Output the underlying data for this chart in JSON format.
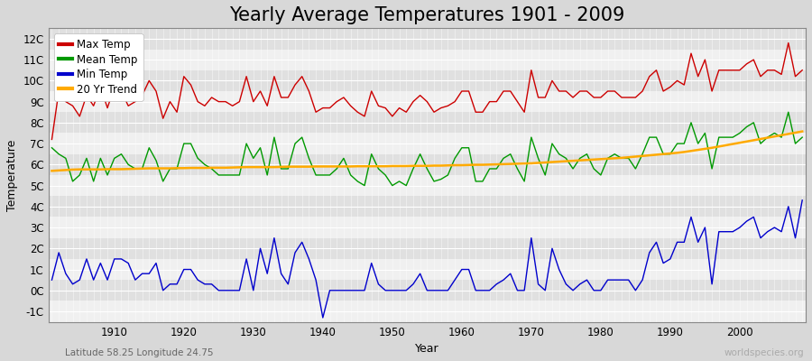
{
  "title": "Yearly Average Temperatures 1901 - 2009",
  "xlabel": "Year",
  "ylabel": "Temperature",
  "subtitle": "Latitude 58.25 Longitude 24.75",
  "watermark": "worldspecies.org",
  "years": [
    1901,
    1902,
    1903,
    1904,
    1905,
    1906,
    1907,
    1908,
    1909,
    1910,
    1911,
    1912,
    1913,
    1914,
    1915,
    1916,
    1917,
    1918,
    1919,
    1920,
    1921,
    1922,
    1923,
    1924,
    1925,
    1926,
    1927,
    1928,
    1929,
    1930,
    1931,
    1932,
    1933,
    1934,
    1935,
    1936,
    1937,
    1938,
    1939,
    1940,
    1941,
    1942,
    1943,
    1944,
    1945,
    1946,
    1947,
    1948,
    1949,
    1950,
    1951,
    1952,
    1953,
    1954,
    1955,
    1956,
    1957,
    1958,
    1959,
    1960,
    1961,
    1962,
    1963,
    1964,
    1965,
    1966,
    1967,
    1968,
    1969,
    1970,
    1971,
    1972,
    1973,
    1974,
    1975,
    1976,
    1977,
    1978,
    1979,
    1980,
    1981,
    1982,
    1983,
    1984,
    1985,
    1986,
    1987,
    1988,
    1989,
    1990,
    1991,
    1992,
    1993,
    1994,
    1995,
    1996,
    1997,
    1998,
    1999,
    2000,
    2001,
    2002,
    2003,
    2004,
    2005,
    2006,
    2007,
    2008,
    2009
  ],
  "max_temp": [
    7.2,
    9.5,
    9.0,
    8.8,
    8.3,
    9.3,
    8.8,
    9.7,
    8.7,
    9.7,
    9.5,
    8.8,
    9.0,
    9.3,
    10.0,
    9.5,
    8.2,
    9.0,
    8.5,
    10.2,
    9.8,
    9.0,
    8.8,
    9.2,
    9.0,
    9.0,
    8.8,
    9.0,
    10.2,
    9.0,
    9.5,
    8.8,
    10.2,
    9.2,
    9.2,
    9.8,
    10.2,
    9.5,
    8.5,
    8.7,
    8.7,
    9.0,
    9.2,
    8.8,
    8.5,
    8.3,
    9.5,
    8.8,
    8.7,
    8.3,
    8.7,
    8.5,
    9.0,
    9.3,
    9.0,
    8.5,
    8.7,
    8.8,
    9.0,
    9.5,
    9.5,
    8.5,
    8.5,
    9.0,
    9.0,
    9.5,
    9.5,
    9.0,
    8.5,
    10.5,
    9.2,
    9.2,
    10.0,
    9.5,
    9.5,
    9.2,
    9.5,
    9.5,
    9.2,
    9.2,
    9.5,
    9.5,
    9.2,
    9.2,
    9.2,
    9.5,
    10.2,
    10.5,
    9.5,
    9.7,
    10.0,
    9.8,
    11.3,
    10.2,
    11.0,
    9.5,
    10.5,
    10.5,
    10.5,
    10.5,
    10.8,
    11.0,
    10.2,
    10.5,
    10.5,
    10.3,
    11.8,
    10.2,
    10.5
  ],
  "mean_temp": [
    6.8,
    6.5,
    6.3,
    5.2,
    5.5,
    6.3,
    5.2,
    6.3,
    5.5,
    6.3,
    6.5,
    6.0,
    5.8,
    5.8,
    6.8,
    6.2,
    5.2,
    5.8,
    5.8,
    7.0,
    7.0,
    6.3,
    6.0,
    5.8,
    5.5,
    5.5,
    5.5,
    5.5,
    7.0,
    6.3,
    6.8,
    5.5,
    7.3,
    5.8,
    5.8,
    7.0,
    7.3,
    6.3,
    5.5,
    5.5,
    5.5,
    5.8,
    6.3,
    5.5,
    5.2,
    5.0,
    6.5,
    5.8,
    5.5,
    5.0,
    5.2,
    5.0,
    5.8,
    6.5,
    5.8,
    5.2,
    5.3,
    5.5,
    6.3,
    6.8,
    6.8,
    5.2,
    5.2,
    5.8,
    5.8,
    6.3,
    6.5,
    5.8,
    5.2,
    7.3,
    6.3,
    5.5,
    7.0,
    6.5,
    6.3,
    5.8,
    6.3,
    6.5,
    5.8,
    5.5,
    6.3,
    6.5,
    6.3,
    6.3,
    5.8,
    6.5,
    7.3,
    7.3,
    6.5,
    6.5,
    7.0,
    7.0,
    8.0,
    7.0,
    7.5,
    5.8,
    7.3,
    7.3,
    7.3,
    7.5,
    7.8,
    8.0,
    7.0,
    7.3,
    7.5,
    7.3,
    8.5,
    7.0,
    7.3
  ],
  "min_temp": [
    0.5,
    1.8,
    0.8,
    0.3,
    0.5,
    1.5,
    0.5,
    1.3,
    0.5,
    1.5,
    1.5,
    1.3,
    0.5,
    0.8,
    0.8,
    1.3,
    0.0,
    0.3,
    0.3,
    1.0,
    1.0,
    0.5,
    0.3,
    0.3,
    0.0,
    0.0,
    0.0,
    0.0,
    1.5,
    0.0,
    2.0,
    0.8,
    2.5,
    0.8,
    0.3,
    1.8,
    2.3,
    1.5,
    0.5,
    -1.3,
    0.0,
    0.0,
    0.0,
    0.0,
    0.0,
    0.0,
    1.3,
    0.3,
    0.0,
    0.0,
    0.0,
    0.0,
    0.3,
    0.8,
    0.0,
    0.0,
    0.0,
    0.0,
    0.5,
    1.0,
    1.0,
    0.0,
    0.0,
    0.0,
    0.3,
    0.5,
    0.8,
    0.0,
    0.0,
    2.5,
    0.3,
    0.0,
    2.0,
    1.0,
    0.3,
    0.0,
    0.3,
    0.5,
    0.0,
    0.0,
    0.5,
    0.5,
    0.5,
    0.5,
    0.0,
    0.5,
    1.8,
    2.3,
    1.3,
    1.5,
    2.3,
    2.3,
    3.5,
    2.3,
    3.0,
    0.3,
    2.8,
    2.8,
    2.8,
    3.0,
    3.3,
    3.5,
    2.5,
    2.8,
    3.0,
    2.8,
    4.0,
    2.5,
    4.3
  ],
  "trend": [
    5.7,
    5.72,
    5.74,
    5.76,
    5.77,
    5.77,
    5.77,
    5.77,
    5.78,
    5.78,
    5.78,
    5.79,
    5.8,
    5.81,
    5.82,
    5.82,
    5.82,
    5.82,
    5.83,
    5.83,
    5.84,
    5.84,
    5.84,
    5.85,
    5.85,
    5.85,
    5.86,
    5.87,
    5.88,
    5.88,
    5.88,
    5.88,
    5.88,
    5.89,
    5.9,
    5.9,
    5.9,
    5.9,
    5.91,
    5.91,
    5.91,
    5.91,
    5.91,
    5.91,
    5.92,
    5.92,
    5.92,
    5.92,
    5.92,
    5.93,
    5.93,
    5.93,
    5.94,
    5.94,
    5.94,
    5.95,
    5.95,
    5.96,
    5.97,
    5.97,
    5.98,
    5.99,
    5.99,
    6.0,
    6.01,
    6.02,
    6.03,
    6.04,
    6.05,
    6.06,
    6.08,
    6.1,
    6.12,
    6.14,
    6.16,
    6.18,
    6.2,
    6.22,
    6.24,
    6.26,
    6.28,
    6.3,
    6.32,
    6.35,
    6.38,
    6.41,
    6.44,
    6.47,
    6.5,
    6.53,
    6.56,
    6.6,
    6.65,
    6.7,
    6.75,
    6.8,
    6.86,
    6.92,
    6.98,
    7.04,
    7.1,
    7.16,
    7.22,
    7.28,
    7.34,
    7.4,
    7.46,
    7.52,
    7.58
  ],
  "line_colors": {
    "max_temp": "#cc0000",
    "mean_temp": "#009900",
    "min_temp": "#0000cc",
    "trend": "#ffaa00"
  },
  "legend_labels": [
    "Max Temp",
    "Mean Temp",
    "Min Temp",
    "20 Yr Trend"
  ],
  "ylim": [
    -1.5,
    12.5
  ],
  "yticks": [
    -1,
    0,
    1,
    2,
    3,
    4,
    5,
    6,
    7,
    8,
    9,
    10,
    11,
    12
  ],
  "ytick_labels": [
    "-1C",
    "0C",
    "1C",
    "2C",
    "3C",
    "4C",
    "5C",
    "6C",
    "7C",
    "8C",
    "9C",
    "10C",
    "11C",
    "12C"
  ],
  "xticks": [
    1910,
    1920,
    1930,
    1940,
    1950,
    1960,
    1970,
    1980,
    1990,
    2000
  ],
  "bg_color": "#d8d8d8",
  "plot_bg_light": "#f0f0f0",
  "plot_bg_dark": "#e0e0e0",
  "grid_color": "#ffffff",
  "title_fontsize": 15,
  "label_fontsize": 9,
  "tick_fontsize": 8.5,
  "line_width": 1.0,
  "band_interval": 1,
  "subtitle_color": "#666666",
  "watermark_color": "#aaaaaa"
}
